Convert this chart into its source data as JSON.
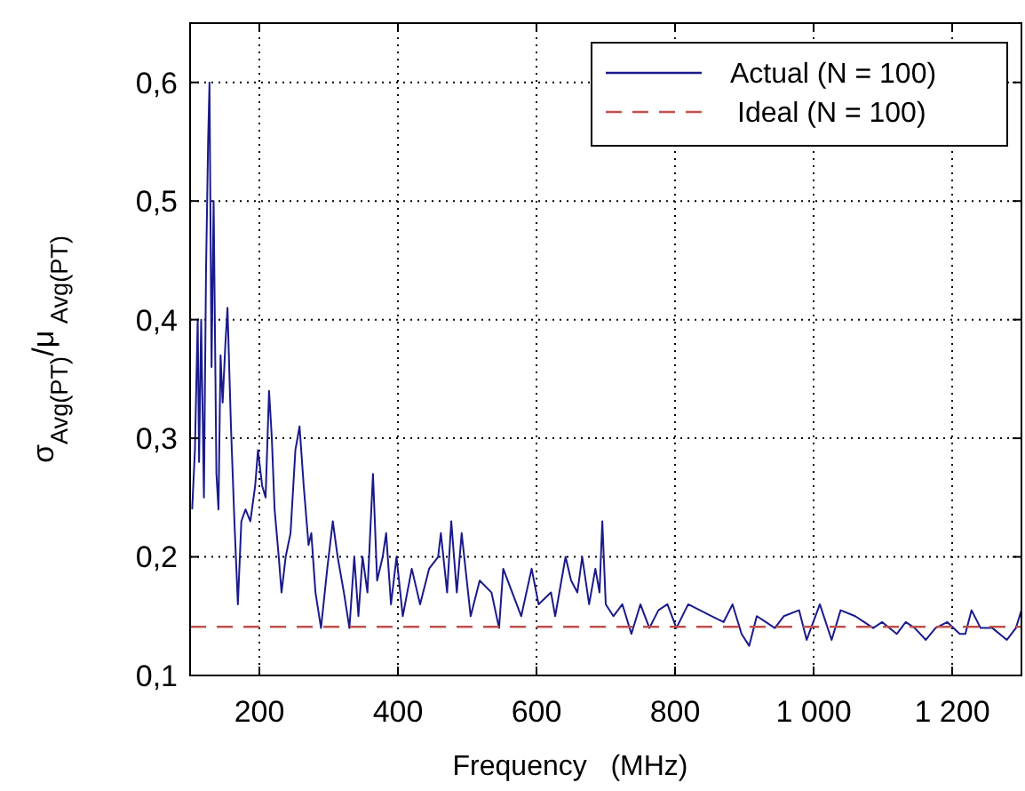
{
  "chart_data": {
    "type": "line",
    "xlabel": "Frequency   (MHz)",
    "ylabel": "σ$_{Avg(P}$$_{T}$$_{)}$/μ$_{ Avg(P}$$_{T}$$_{)}$",
    "xlim": [
      100,
      1300
    ],
    "ylim": [
      0.1,
      0.65
    ],
    "xticks": [
      200,
      400,
      600,
      800,
      {
        "value": 1000,
        "label": "1 000"
      },
      {
        "value": 1200,
        "label": "1 200"
      }
    ],
    "yticks": [
      {
        "value": 0.1,
        "label": "0,1"
      },
      {
        "value": 0.2,
        "label": "0,2"
      },
      {
        "value": 0.3,
        "label": "0,3"
      },
      {
        "value": 0.4,
        "label": "0,4"
      },
      {
        "value": 0.5,
        "label": "0,5"
      },
      {
        "value": 0.6,
        "label": "0,6"
      }
    ],
    "grid": true,
    "legend": "top right",
    "series": [
      {
        "name": "Actual (N = 100)",
        "color": "#1a1a8c",
        "line_style": "solid",
        "x": [
          103,
          107,
          111,
          113,
          116,
          120,
          123,
          126,
          128,
          131,
          134,
          138,
          141,
          144,
          147,
          151,
          154,
          159,
          164,
          169,
          174,
          180,
          187,
          194,
          198,
          204,
          209,
          214,
          218,
          222,
          228,
          232,
          238,
          245,
          252,
          258,
          264,
          271,
          275,
          281,
          289,
          298,
          306,
          313,
          322,
          330,
          337,
          343,
          349,
          356,
          364,
          370,
          378,
          383,
          390,
          398,
          407,
          420,
          432,
          445,
          458,
          462,
          471,
          477,
          485,
          492,
          505,
          518,
          535,
          546,
          552,
          565,
          578,
          593,
          603,
          621,
          627,
          642,
          650,
          659,
          666,
          676,
          685,
          691,
          695,
          700,
          711,
          724,
          737,
          750,
          763,
          776,
          789,
          802,
          819,
          836,
          853,
          870,
          883,
          896,
          907,
          918,
          931,
          944,
          957,
          979,
          990,
          1009,
          1026,
          1039,
          1060,
          1073,
          1086,
          1099,
          1120,
          1133,
          1146,
          1162,
          1176,
          1193,
          1211,
          1219,
          1228,
          1241,
          1258,
          1279,
          1292,
          1300
        ],
        "values": [
          0.24,
          0.29,
          0.4,
          0.28,
          0.4,
          0.25,
          0.44,
          0.55,
          0.6,
          0.36,
          0.5,
          0.27,
          0.24,
          0.37,
          0.33,
          0.38,
          0.41,
          0.31,
          0.23,
          0.16,
          0.23,
          0.24,
          0.23,
          0.26,
          0.29,
          0.26,
          0.25,
          0.34,
          0.3,
          0.24,
          0.2,
          0.17,
          0.2,
          0.22,
          0.29,
          0.31,
          0.26,
          0.21,
          0.22,
          0.17,
          0.14,
          0.19,
          0.23,
          0.2,
          0.17,
          0.14,
          0.2,
          0.15,
          0.2,
          0.17,
          0.27,
          0.18,
          0.2,
          0.22,
          0.16,
          0.2,
          0.15,
          0.19,
          0.16,
          0.19,
          0.2,
          0.22,
          0.17,
          0.23,
          0.17,
          0.22,
          0.15,
          0.18,
          0.17,
          0.14,
          0.19,
          0.17,
          0.15,
          0.19,
          0.16,
          0.17,
          0.15,
          0.2,
          0.18,
          0.17,
          0.2,
          0.16,
          0.19,
          0.17,
          0.23,
          0.16,
          0.15,
          0.16,
          0.135,
          0.16,
          0.14,
          0.155,
          0.16,
          0.14,
          0.16,
          0.155,
          0.15,
          0.145,
          0.16,
          0.135,
          0.125,
          0.15,
          0.145,
          0.14,
          0.15,
          0.155,
          0.13,
          0.16,
          0.13,
          0.155,
          0.15,
          0.145,
          0.14,
          0.145,
          0.135,
          0.145,
          0.14,
          0.13,
          0.14,
          0.145,
          0.135,
          0.135,
          0.155,
          0.14,
          0.14,
          0.13,
          0.14,
          0.155
        ]
      },
      {
        "name": "Ideal (N = 100)",
        "color": "#c0504d",
        "line_style": "dashed",
        "x": [
          100,
          1300
        ],
        "values": [
          0.141,
          0.141
        ]
      }
    ]
  }
}
